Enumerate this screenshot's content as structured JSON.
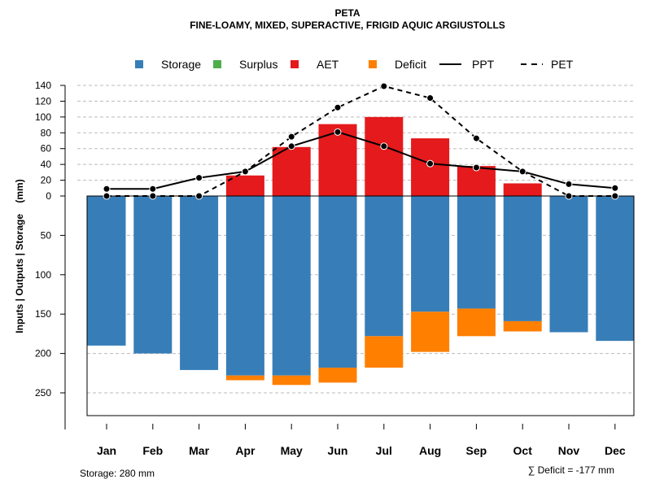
{
  "chart_data": {
    "type": "bar",
    "title": "PETA",
    "subtitle": "FINE-LOAMY, MIXED, SUPERACTIVE, FRIGID AQUIC ARGIUSTOLLS",
    "ylabel": "Inputs | Outputs | Storage    (mm)",
    "categories": [
      "Jan",
      "Feb",
      "Mar",
      "Apr",
      "May",
      "Jun",
      "Jul",
      "Aug",
      "Sep",
      "Oct",
      "Nov",
      "Dec"
    ],
    "upper_ticks": [
      0,
      20,
      40,
      60,
      80,
      100,
      120,
      140
    ],
    "lower_ticks": [
      50,
      100,
      150,
      200,
      250
    ],
    "upper_ylim": [
      0,
      140
    ],
    "lower_ylim": [
      0,
      280
    ],
    "legend": [
      {
        "name": "Storage",
        "kind": "box",
        "color": "#377EB8"
      },
      {
        "name": "Surplus",
        "kind": "box",
        "color": "#4DAF4A"
      },
      {
        "name": "AET",
        "kind": "box",
        "color": "#E41A1C"
      },
      {
        "name": "Deficit",
        "kind": "box",
        "color": "#FF7F00"
      },
      {
        "name": "PPT",
        "kind": "solid"
      },
      {
        "name": "PET",
        "kind": "dashed"
      }
    ],
    "series": [
      {
        "name": "Storage",
        "values": [
          190,
          200,
          221,
          228,
          228,
          218,
          178,
          147,
          143,
          159,
          173,
          184
        ]
      },
      {
        "name": "Deficit",
        "values": [
          0,
          0,
          0,
          6,
          12,
          19,
          40,
          51,
          35,
          13,
          0,
          0
        ]
      },
      {
        "name": "Surplus",
        "values": [
          0,
          0,
          0,
          0,
          0,
          0,
          0,
          0,
          0,
          0,
          0,
          0
        ]
      },
      {
        "name": "AET",
        "values": [
          0,
          0,
          0,
          26,
          62,
          91,
          100,
          73,
          38,
          16,
          0,
          0
        ]
      },
      {
        "name": "PPT",
        "values": [
          9,
          9,
          23,
          31,
          63,
          81,
          63,
          41,
          36,
          31,
          15,
          10
        ]
      },
      {
        "name": "PET",
        "values": [
          0,
          0,
          0,
          31,
          75,
          112,
          139,
          124,
          73,
          31,
          0,
          0
        ]
      }
    ],
    "footer_left": "Storage: 280 mm",
    "footer_right": "∑ Deficit = -177 mm",
    "grid": true
  }
}
